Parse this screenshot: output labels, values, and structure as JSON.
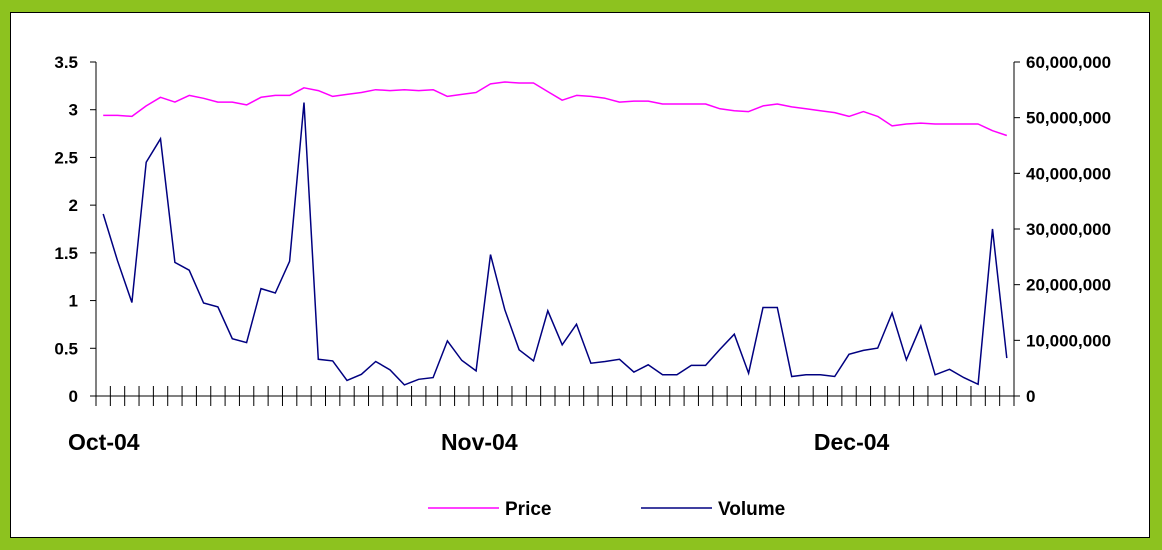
{
  "chart_data": {
    "type": "line",
    "dual_axis": true,
    "x_category_labels": [
      "Oct-04",
      "Nov-04",
      "Dec-04"
    ],
    "y_left": {
      "range": [
        0,
        3.5
      ],
      "ticks": [
        0,
        0.5,
        1,
        1.5,
        2,
        2.5,
        3,
        3.5
      ],
      "tick_labels": [
        "0",
        "0.5",
        "1",
        "1.5",
        "2",
        "2.5",
        "3",
        "3.5"
      ]
    },
    "y_right": {
      "range": [
        0,
        60000000
      ],
      "ticks": [
        0,
        10000000,
        20000000,
        30000000,
        40000000,
        50000000,
        60000000
      ],
      "tick_labels": [
        "0",
        "10,000,000",
        "20,000,000",
        "30,000,000",
        "40,000,000",
        "50,000,000",
        "60,000,000"
      ]
    },
    "grid": false,
    "legend_position": "bottom",
    "series": [
      {
        "name": "Price",
        "axis": "left",
        "color": "#ff00ff",
        "values": [
          2.94,
          2.94,
          2.93,
          3.04,
          3.13,
          3.08,
          3.15,
          3.12,
          3.08,
          3.08,
          3.05,
          3.13,
          3.15,
          3.15,
          3.23,
          3.2,
          3.14,
          3.16,
          3.18,
          3.21,
          3.2,
          3.21,
          3.2,
          3.21,
          3.14,
          3.16,
          3.18,
          3.27,
          3.29,
          3.28,
          3.28,
          3.19,
          3.1,
          3.15,
          3.14,
          3.12,
          3.08,
          3.09,
          3.09,
          3.06,
          3.06,
          3.06,
          3.06,
          3.01,
          2.99,
          2.98,
          3.04,
          3.06,
          3.03,
          3.01,
          2.99,
          2.97,
          2.93,
          2.98,
          2.93,
          2.83,
          2.85,
          2.86,
          2.85,
          2.85,
          2.85,
          2.85,
          2.78,
          2.73
        ]
      },
      {
        "name": "Volume",
        "axis": "right",
        "color": "#000080",
        "values": [
          32700000,
          24300000,
          16800000,
          42000000,
          46200000,
          24000000,
          22600000,
          16700000,
          16000000,
          10300000,
          9600000,
          19300000,
          18500000,
          24200000,
          52700000,
          6600000,
          6300000,
          2800000,
          3900000,
          6200000,
          4700000,
          2000000,
          3000000,
          3300000,
          9900000,
          6400000,
          4500000,
          25400000,
          15500000,
          8300000,
          6300000,
          15300000,
          9200000,
          12900000,
          5900000,
          6200000,
          6600000,
          4300000,
          5600000,
          3800000,
          3800000,
          5500000,
          5500000,
          8400000,
          11100000,
          4100000,
          15900000,
          15900000,
          3500000,
          3800000,
          3800000,
          3500000,
          7500000,
          8200000,
          8600000,
          14900000,
          6500000,
          12600000,
          3800000,
          4800000,
          3300000,
          2100000,
          30000000,
          6800000
        ]
      }
    ]
  },
  "legend": {
    "price": "Price",
    "volume": "Volume"
  }
}
